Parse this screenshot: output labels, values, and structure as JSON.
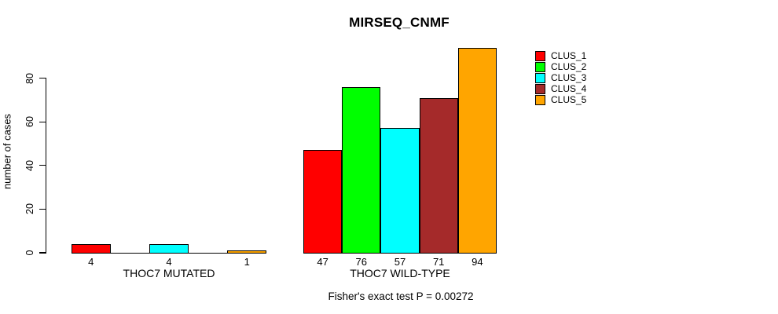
{
  "chart_data": {
    "type": "bar",
    "title": "MIRSEQ_CNMF",
    "ylabel": "number of cases",
    "xlabel": "",
    "yticks": [
      0,
      20,
      40,
      60,
      80
    ],
    "ylim": [
      0,
      97.5
    ],
    "grid": false,
    "legend_position": "right",
    "bar_border_color": "#000000",
    "text_color": "#000000",
    "categories": [
      "THOC7 MUTATED",
      "THOC7 WILD-TYPE"
    ],
    "series": [
      {
        "name": "CLUS_1",
        "color": "#FF0000",
        "values": [
          4,
          47
        ]
      },
      {
        "name": "CLUS_2",
        "color": "#00FF00",
        "values": [
          0,
          76
        ]
      },
      {
        "name": "CLUS_3",
        "color": "#00FFFF",
        "values": [
          4,
          57
        ]
      },
      {
        "name": "CLUS_4",
        "color": "#A52A2A",
        "values": [
          0,
          71
        ]
      },
      {
        "name": "CLUS_5",
        "color": "#FFA500",
        "values": [
          1,
          94
        ]
      }
    ],
    "bar_value_labels": {
      "THOC7 MUTATED": [
        "4",
        "",
        "4",
        "",
        "1"
      ],
      "THOC7 WILD-TYPE": [
        "47",
        "76",
        "57",
        "71",
        "94"
      ]
    },
    "annotation": "Fisher's exact test P = 0.00272"
  }
}
